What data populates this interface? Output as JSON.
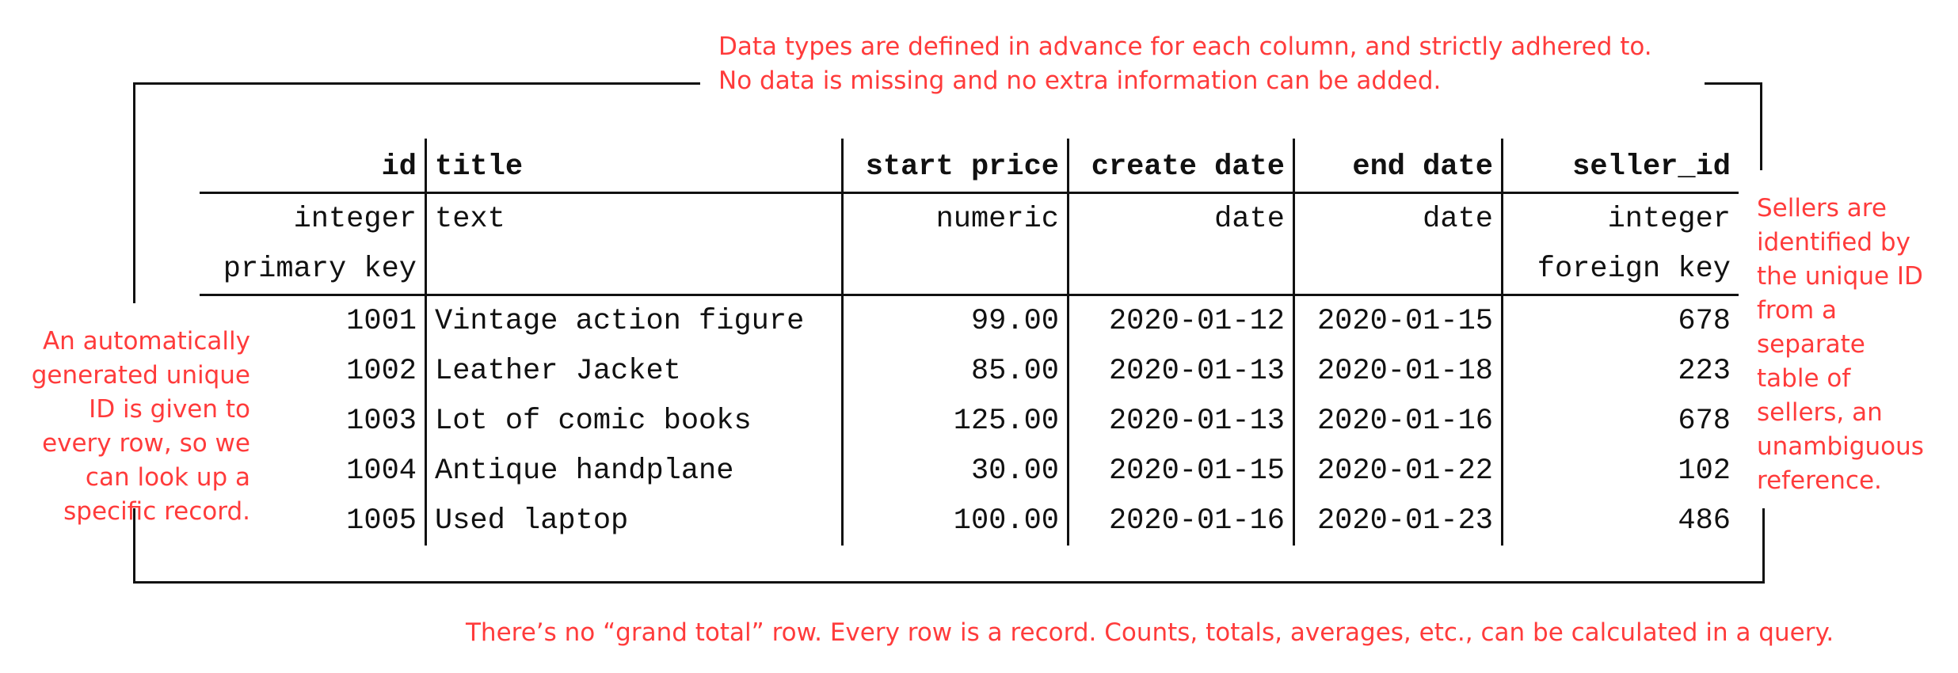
{
  "annotations": {
    "top": [
      "Data types are defined in advance for each column, and strictly adhered to.",
      "No data is missing and no extra information can be added."
    ],
    "left": [
      "An automatically",
      "generated unique",
      "ID is given to",
      "every row, so we",
      "can look up a",
      "specific record."
    ],
    "right": [
      "Sellers are",
      "identified by",
      "the unique ID",
      "from a",
      "separate",
      "table of",
      "sellers, an",
      "unambiguous",
      "reference."
    ],
    "bottom": "There’s no “grand total” row.  Every row is a record.  Counts, totals, averages, etc., can be calculated in a query."
  },
  "table": {
    "columns": [
      "id",
      "title",
      "start price",
      "create date",
      "end date",
      "seller_id"
    ],
    "types": [
      "integer",
      "text",
      "numeric",
      "date",
      "date",
      "integer"
    ],
    "constraints": [
      "primary key",
      "",
      "",
      "",
      "",
      "foreign key"
    ],
    "rows": [
      [
        "1001",
        "Vintage action figure",
        "99.00",
        "2020-01-12",
        "2020-01-15",
        "678"
      ],
      [
        "1002",
        "Leather Jacket",
        "85.00",
        "2020-01-13",
        "2020-01-18",
        "223"
      ],
      [
        "1003",
        "Lot of comic books",
        "125.00",
        "2020-01-13",
        "2020-01-16",
        "678"
      ],
      [
        "1004",
        "Antique handplane",
        "30.00",
        "2020-01-15",
        "2020-01-22",
        "102"
      ],
      [
        "1005",
        "Used laptop",
        "100.00",
        "2020-01-16",
        "2020-01-23",
        "486"
      ]
    ]
  },
  "colors": {
    "annotation": "#ff3b3b",
    "lines": "#111111"
  }
}
